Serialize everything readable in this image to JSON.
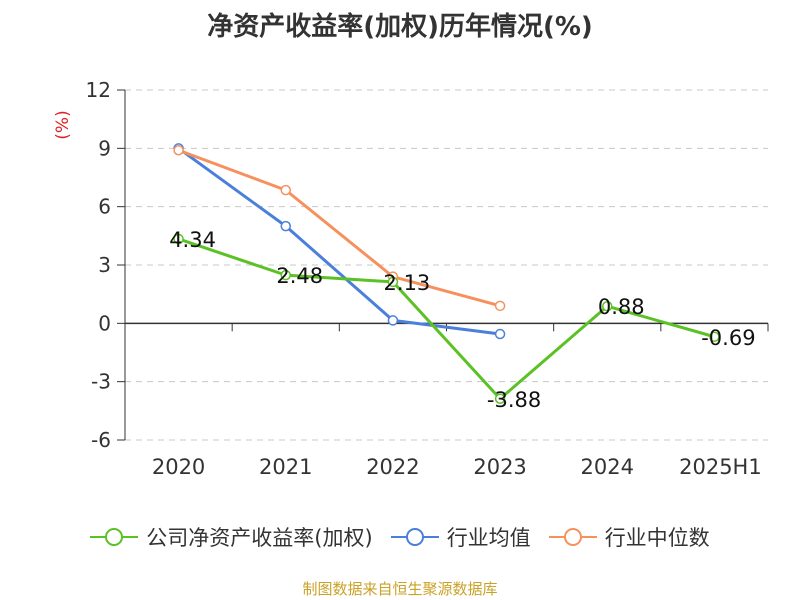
{
  "title": "净资产收益率(加权)历年情况(%)",
  "source_note": "制图数据来自恒生聚源数据库",
  "chart_data": {
    "type": "line",
    "title": "净资产收益率(加权)历年情况(%)",
    "ylabel": "(%)",
    "xlabel": "",
    "categories": [
      "2020",
      "2021",
      "2022",
      "2023",
      "2024",
      "2025H1"
    ],
    "ylim": [
      -6,
      12
    ],
    "yticks": [
      12,
      9,
      6,
      3,
      0,
      -3,
      -6
    ],
    "ytick_labels": [
      "12",
      "9",
      "6",
      "3",
      "0",
      "-3",
      "-6"
    ],
    "grid": true,
    "legend_position": "bottom",
    "series": [
      {
        "name": "公司净资产收益率(加权)",
        "color": "#5bc125",
        "values": [
          4.34,
          2.48,
          2.13,
          -3.88,
          0.88,
          -0.69
        ],
        "labels": [
          "4.34",
          "2.48",
          "2.13",
          "-3.88",
          "0.88",
          "-0.69"
        ]
      },
      {
        "name": "行业均值",
        "color": "#4a7fdb",
        "values": [
          9.0,
          5.0,
          0.15,
          -0.55,
          null,
          null
        ]
      },
      {
        "name": "行业中位数",
        "color": "#f6915d",
        "values": [
          8.9,
          6.85,
          2.4,
          0.9,
          null,
          null
        ]
      }
    ]
  }
}
